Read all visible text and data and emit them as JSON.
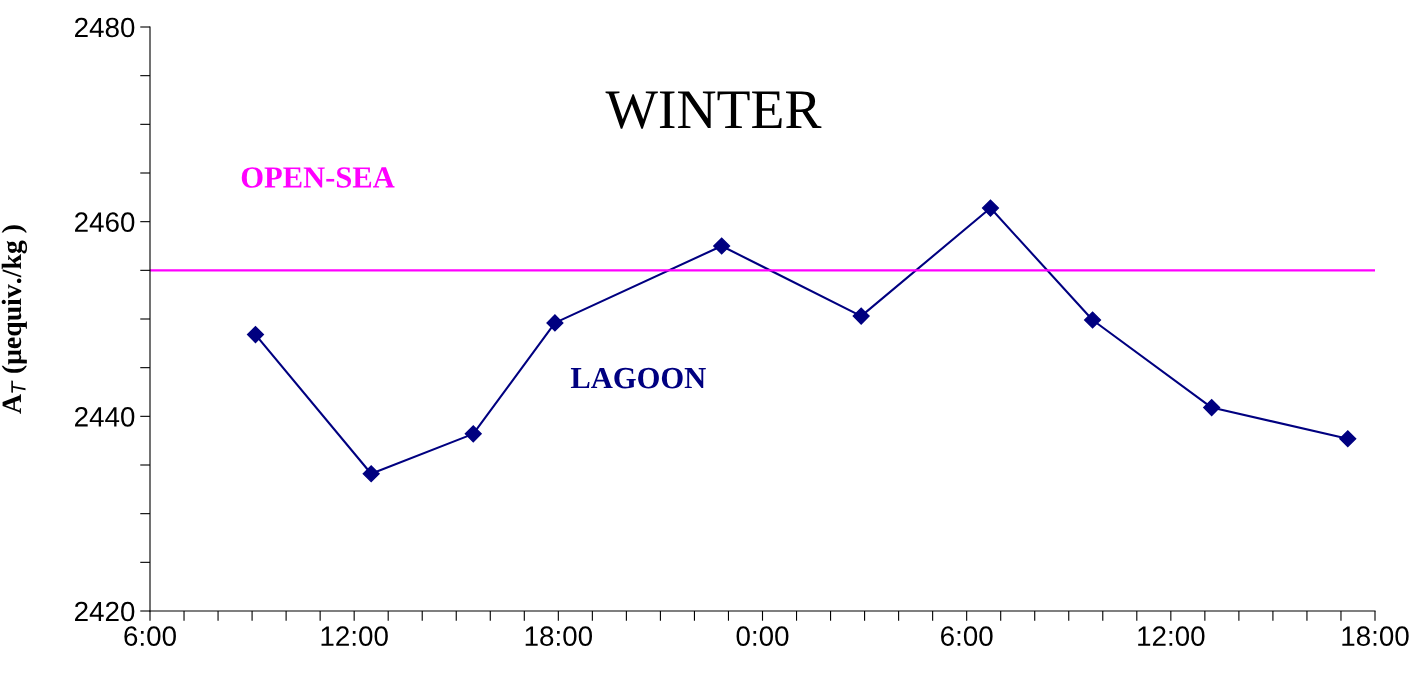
{
  "chart_data": {
    "type": "line",
    "title": "WINTER",
    "ylabel": "A$_{T}$ (μequiv./kg )",
    "xlim": [
      "2000-01-01T06:00",
      "2000-01-02T18:00"
    ],
    "xticks": [
      {
        "value": "2000-01-01T06:00",
        "label": "6:00"
      },
      {
        "value": "2000-01-01T07:00",
        "label": null
      },
      {
        "value": "2000-01-01T08:00",
        "label": null
      },
      {
        "value": "2000-01-01T09:00",
        "label": null
      },
      {
        "value": "2000-01-01T10:00",
        "label": null
      },
      {
        "value": "2000-01-01T11:00",
        "label": null
      },
      {
        "value": "2000-01-01T12:00",
        "label": "12:00"
      },
      {
        "value": "2000-01-01T13:00",
        "label": null
      },
      {
        "value": "2000-01-01T14:00",
        "label": null
      },
      {
        "value": "2000-01-01T15:00",
        "label": null
      },
      {
        "value": "2000-01-01T16:00",
        "label": null
      },
      {
        "value": "2000-01-01T17:00",
        "label": null
      },
      {
        "value": "2000-01-01T18:00",
        "label": "18:00"
      },
      {
        "value": "2000-01-01T19:00",
        "label": null
      },
      {
        "value": "2000-01-01T20:00",
        "label": null
      },
      {
        "value": "2000-01-01T21:00",
        "label": null
      },
      {
        "value": "2000-01-01T22:00",
        "label": null
      },
      {
        "value": "2000-01-01T23:00",
        "label": null
      },
      {
        "value": "2000-01-02T00:00",
        "label": "0:00"
      },
      {
        "value": "2000-01-02T01:00",
        "label": null
      },
      {
        "value": "2000-01-02T02:00",
        "label": null
      },
      {
        "value": "2000-01-02T03:00",
        "label": null
      },
      {
        "value": "2000-01-02T04:00",
        "label": null
      },
      {
        "value": "2000-01-02T05:00",
        "label": null
      },
      {
        "value": "2000-01-02T06:00",
        "label": "6:00"
      },
      {
        "value": "2000-01-02T07:00",
        "label": null
      },
      {
        "value": "2000-01-02T08:00",
        "label": null
      },
      {
        "value": "2000-01-02T09:00",
        "label": null
      },
      {
        "value": "2000-01-02T10:00",
        "label": null
      },
      {
        "value": "2000-01-02T11:00",
        "label": null
      },
      {
        "value": "2000-01-02T12:00",
        "label": "12:00"
      },
      {
        "value": "2000-01-02T13:00",
        "label": null
      },
      {
        "value": "2000-01-02T14:00",
        "label": null
      },
      {
        "value": "2000-01-02T15:00",
        "label": null
      },
      {
        "value": "2000-01-02T16:00",
        "label": null
      },
      {
        "value": "2000-01-02T17:00",
        "label": null
      },
      {
        "value": "2000-01-02T18:00",
        "label": "18:00"
      }
    ],
    "ylim": [
      2420,
      2480
    ],
    "yticks": [
      2420,
      {
        "value": 2425,
        "label": null
      },
      {
        "value": 2430,
        "label": null
      },
      {
        "value": 2435,
        "label": null
      },
      2440,
      {
        "value": 2445,
        "label": null
      },
      {
        "value": 2450,
        "label": null
      },
      {
        "value": 2455,
        "label": null
      },
      2460,
      {
        "value": 2465,
        "label": null
      },
      {
        "value": 2470,
        "label": null
      },
      {
        "value": 2475,
        "label": null
      },
      2480
    ],
    "series": [
      {
        "name": "LAGOON",
        "color": "#000080",
        "x": [
          "2000-01-01T09:06",
          "2000-01-01T12:30",
          "2000-01-01T15:30",
          "2000-01-01T17:54",
          "2000-01-01T22:48",
          "2000-01-02T02:54",
          "2000-01-02T06:42",
          "2000-01-02T09:42",
          "2000-01-02T13:12",
          "2000-01-02T17:12"
        ],
        "values": [
          2448.4,
          2434.1,
          2438.2,
          2449.6,
          2457.5,
          2450.3,
          2461.4,
          2449.9,
          2440.9,
          2437.7
        ]
      }
    ],
    "ref_lines": [
      {
        "axis": "y",
        "value": 2455,
        "label": "OPEN-SEA",
        "color": "#ff00ff",
        "line_style": "solid"
      }
    ],
    "marker": "diamond",
    "line_style": "solid",
    "grid": false,
    "legend": false
  }
}
